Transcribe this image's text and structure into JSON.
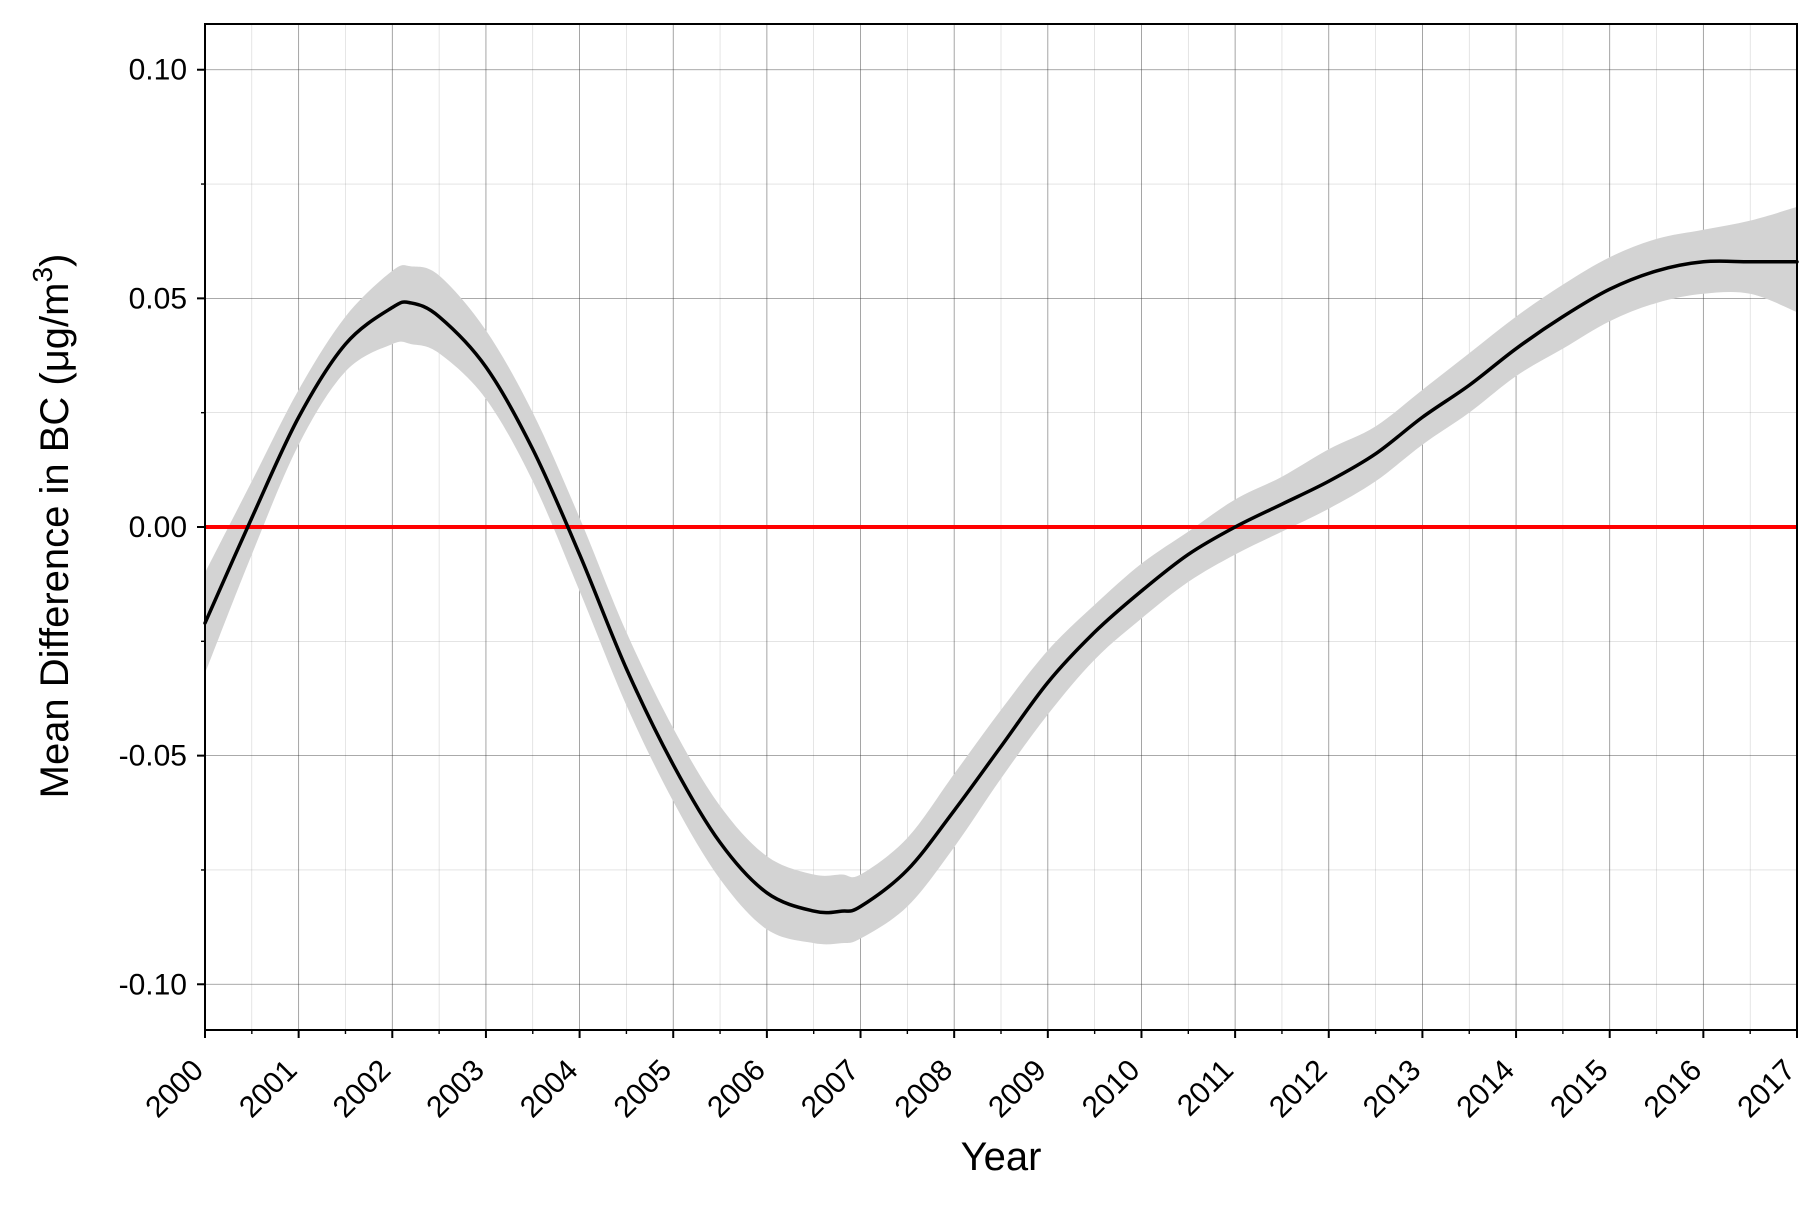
{
  "chart_data": {
    "type": "line",
    "title": "",
    "xlabel": "Year",
    "ylabel": "Mean Difference in BC (μg/m³)",
    "ylabel_parts": {
      "main": "Mean Difference in BC (μg/m",
      "superscript": "3",
      "suffix": ")"
    },
    "xlim": [
      2000,
      2017
    ],
    "ylim": [
      -0.11,
      0.11
    ],
    "x_ticks": [
      2000,
      2001,
      2002,
      2003,
      2004,
      2005,
      2006,
      2007,
      2008,
      2009,
      2010,
      2011,
      2012,
      2013,
      2014,
      2015,
      2016,
      2017
    ],
    "x_tick_labels": [
      "2000",
      "2001",
      "2002",
      "2003",
      "2004",
      "2005",
      "2006",
      "2007",
      "2008",
      "2009",
      "2010",
      "2011",
      "2012",
      "2013",
      "2014",
      "2015",
      "2016",
      "2017"
    ],
    "y_ticks": [
      0.1,
      0.05,
      0.0,
      -0.05,
      -0.1
    ],
    "y_tick_labels": [
      "0.10",
      "0.05",
      "0.00",
      "-0.05",
      "-0.10"
    ],
    "grid": true,
    "minor_grid": true,
    "reference_line": {
      "y": 0.0,
      "color": "#ff0000"
    },
    "series": [
      {
        "x": [
          2000,
          2000.5,
          2001,
          2001.5,
          2002,
          2002.2,
          2002.5,
          2003,
          2003.5,
          2004,
          2004.5,
          2005,
          2005.5,
          2006,
          2006.5,
          2006.8,
          2007,
          2007.5,
          2008,
          2008.5,
          2009,
          2009.5,
          2010,
          2010.5,
          2011,
          2011.5,
          2012,
          2012.5,
          2013,
          2013.5,
          2014,
          2014.5,
          2015,
          2015.5,
          2016,
          2016.5,
          2017
        ],
        "y": [
          -0.021,
          0.002,
          0.024,
          0.04,
          0.048,
          0.049,
          0.046,
          0.035,
          0.017,
          -0.006,
          -0.031,
          -0.052,
          -0.069,
          -0.08,
          -0.084,
          -0.084,
          -0.083,
          -0.075,
          -0.062,
          -0.048,
          -0.034,
          -0.023,
          -0.014,
          -0.006,
          0.0,
          0.005,
          0.01,
          0.016,
          0.024,
          0.031,
          0.039,
          0.046,
          0.052,
          0.056,
          0.058,
          0.058,
          0.058
        ],
        "ci_lower": [
          -0.032,
          -0.006,
          0.018,
          0.034,
          0.04,
          0.04,
          0.038,
          0.028,
          0.01,
          -0.014,
          -0.039,
          -0.06,
          -0.077,
          -0.088,
          -0.091,
          -0.091,
          -0.09,
          -0.083,
          -0.07,
          -0.055,
          -0.041,
          -0.029,
          -0.02,
          -0.012,
          -0.006,
          -0.001,
          0.004,
          0.01,
          0.018,
          0.025,
          0.033,
          0.039,
          0.045,
          0.049,
          0.051,
          0.051,
          0.047
        ],
        "ci_upper": [
          -0.01,
          0.01,
          0.03,
          0.046,
          0.056,
          0.057,
          0.055,
          0.043,
          0.025,
          0.002,
          -0.023,
          -0.044,
          -0.061,
          -0.072,
          -0.076,
          -0.076,
          -0.076,
          -0.068,
          -0.054,
          -0.04,
          -0.027,
          -0.017,
          -0.008,
          -0.001,
          0.006,
          0.011,
          0.017,
          0.022,
          0.03,
          0.038,
          0.046,
          0.053,
          0.059,
          0.063,
          0.065,
          0.067,
          0.07
        ],
        "line_color": "#000000",
        "band_color": "#d3d3d3"
      }
    ]
  }
}
